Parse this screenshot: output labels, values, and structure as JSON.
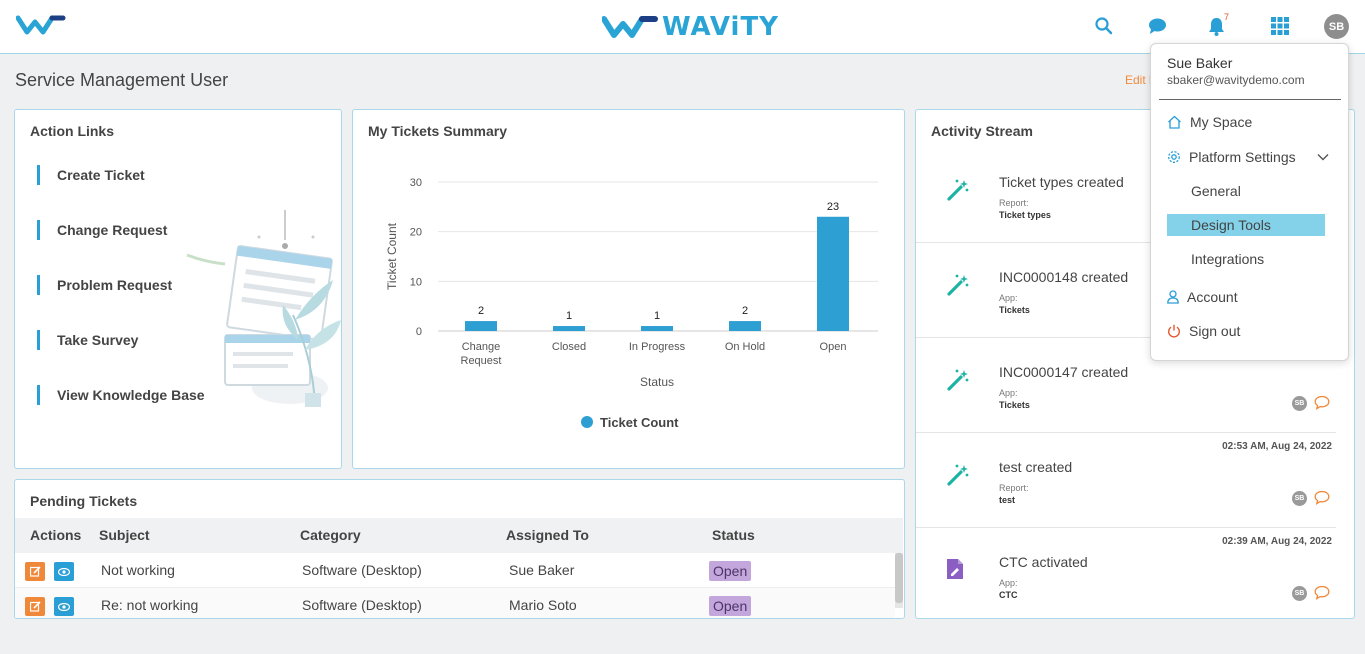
{
  "header": {
    "brand": "WAViTY",
    "notification_count": "7",
    "avatar_initials": "SB"
  },
  "page": {
    "title": "Service Management User",
    "edit_link": "Edit l"
  },
  "action_links": {
    "title": "Action Links",
    "items": [
      "Create Ticket",
      "Change Request",
      "Problem Request",
      "Take Survey",
      "View Knowledge Base"
    ]
  },
  "tickets_summary": {
    "title": "My Tickets Summary"
  },
  "chart_data": {
    "type": "bar",
    "title": "My Tickets Summary",
    "categories": [
      "Change Request",
      "Closed",
      "In Progress",
      "On Hold",
      "Open"
    ],
    "series": [
      {
        "name": "Ticket Count",
        "values": [
          2,
          1,
          1,
          2,
          23
        ]
      }
    ],
    "xlabel": "Status",
    "ylabel": "Ticket Count",
    "ylim": [
      0,
      30
    ],
    "yticks": [
      0,
      10,
      20,
      30
    ],
    "grid": true,
    "legend": "bottom",
    "color": "#2e9fd3"
  },
  "pending": {
    "title": "Pending Tickets",
    "columns": [
      "Actions",
      "Subject",
      "Category",
      "Assigned To",
      "Status"
    ],
    "rows": [
      {
        "subject": "Not working",
        "category": "Software (Desktop)",
        "assigned": "Sue Baker",
        "status": "Open"
      },
      {
        "subject": "Re: not working",
        "category": "Software (Desktop)",
        "assigned": "Mario Soto",
        "status": "Open"
      }
    ]
  },
  "activity": {
    "title": "Activity Stream",
    "items": [
      {
        "title": "Ticket types created",
        "sublabel": "Report:",
        "subvalue": "Ticket types",
        "time": "",
        "icon": "magic-wand-icon",
        "meta": false
      },
      {
        "title": "INC0000148 created",
        "sublabel": "App:",
        "subvalue": "Tickets",
        "time": "",
        "icon": "magic-wand-icon",
        "meta": false
      },
      {
        "title": "INC0000147 created",
        "sublabel": "App:",
        "subvalue": "Tickets",
        "time": "",
        "icon": "magic-wand-icon",
        "meta": true
      },
      {
        "title": "test created",
        "sublabel": "Report:",
        "subvalue": "test",
        "time": "02:53 AM, Aug 24, 2022",
        "icon": "magic-wand-icon",
        "meta": true
      },
      {
        "title": "CTC activated",
        "sublabel": "App:",
        "subvalue": "CTC",
        "time": "02:39 AM, Aug 24, 2022",
        "icon": "file-edit-icon",
        "meta": true
      }
    ],
    "avatar_initials": "SB"
  },
  "user_menu": {
    "name": "Sue Baker",
    "email": "sbaker@wavitydemo.com",
    "my_space": "My Space",
    "platform_settings": "Platform Settings",
    "sub_items": [
      "General",
      "Design Tools",
      "Integrations"
    ],
    "active_sub": "Design Tools",
    "account": "Account",
    "sign_out": "Sign out"
  },
  "colors": {
    "accent": "#2a9fd6",
    "orange": "#f0883a",
    "teal": "#1bb3a4",
    "status_open": "#c3a6dc",
    "highlight": "#84d2e9"
  }
}
